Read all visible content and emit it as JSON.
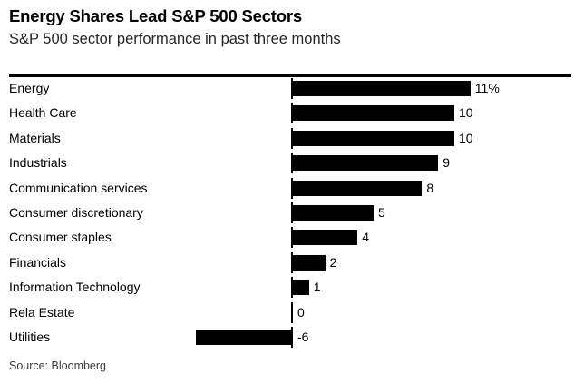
{
  "header": {
    "title": "Energy Shares Lead S&P 500 Sectors",
    "subtitle": "S&P 500 sector performance in past three months"
  },
  "footer": {
    "source": "Source: Bloomberg"
  },
  "colors": {
    "bar": "#000000",
    "text": "#000000",
    "subtitle_text": "#262626",
    "source_text": "#3a3a3a",
    "rule": "#000000",
    "background": "#ffffff"
  },
  "chart_data": {
    "type": "bar",
    "orientation": "horizontal",
    "title": "Energy Shares Lead S&P 500 Sectors",
    "subtitle": "S&P 500 sector performance in past three months",
    "categories": [
      "Energy",
      "Health Care",
      "Materials",
      "Industrials",
      "Communication services",
      "Consumer discretionary",
      "Consumer staples",
      "Financials",
      "Information Technology",
      "Rela Estate",
      "Utilities"
    ],
    "values": [
      11,
      10,
      10,
      9,
      8,
      5,
      4,
      2,
      1,
      0,
      -6
    ],
    "value_labels": [
      "11%",
      "10",
      "10",
      "9",
      "8",
      "5",
      "4",
      "2",
      "1",
      "0",
      "-6"
    ],
    "unit": "%",
    "xlim": [
      -6,
      12
    ],
    "xlabel": "",
    "ylabel": "",
    "grid": false,
    "legend": false,
    "axis_style": "zero-baseline with per-bar tick marks, no gridlines, value labels at bar ends",
    "bar_color": "#000000",
    "source": "Source: Bloomberg"
  }
}
